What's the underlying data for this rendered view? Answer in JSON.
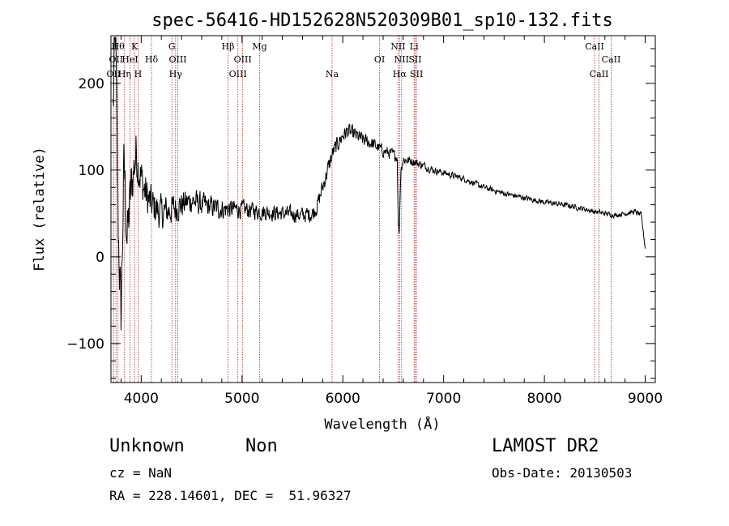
{
  "chart_data": {
    "type": "line",
    "title": "spec-56416-HD152628N520309B01_sp10-132.fits",
    "xlabel": "Wavelength (Å)",
    "ylabel": "Flux (relative)",
    "xlim": [
      3700,
      9100
    ],
    "ylim": [
      -145,
      255
    ],
    "x_ticks": [
      4000,
      5000,
      6000,
      7000,
      8000,
      9000
    ],
    "x_tick_labels": [
      "4000",
      "5000",
      "6000",
      "7000",
      "8000",
      "9000"
    ],
    "y_ticks": [
      -100,
      0,
      100,
      200
    ],
    "y_tick_labels": [
      "−100",
      "0",
      "100",
      "200"
    ],
    "line_color": "#000000",
    "marker_line_color": "#b22222",
    "spectrum_anchors": {
      "x": [
        3720,
        3745,
        3770,
        3800,
        3830,
        3860,
        3900,
        3950,
        4000,
        4050,
        4100,
        4200,
        4300,
        4400,
        4500,
        4600,
        4800,
        5000,
        5200,
        5400,
        5600,
        5700,
        5750,
        5800,
        5850,
        5900,
        5950,
        6000,
        6050,
        6100,
        6200,
        6300,
        6400,
        6500,
        6540,
        6550,
        6560,
        6575,
        6600,
        6700,
        6800,
        6900,
        7000,
        7200,
        7400,
        7600,
        7800,
        8000,
        8200,
        8400,
        8500,
        8600,
        8700,
        8800,
        8900,
        8960,
        9000
      ],
      "y": [
        170,
        260,
        40,
        -70,
        110,
        20,
        80,
        120,
        90,
        70,
        60,
        50,
        55,
        60,
        65,
        60,
        55,
        55,
        52,
        50,
        48,
        50,
        60,
        80,
        100,
        120,
        130,
        140,
        145,
        142,
        135,
        130,
        122,
        118,
        115,
        40,
        30,
        100,
        112,
        110,
        105,
        100,
        97,
        90,
        80,
        73,
        68,
        63,
        60,
        55,
        52,
        50,
        48,
        50,
        52,
        48,
        10
      ]
    },
    "spectrum_noise": {
      "x": [
        3700,
        3900,
        4100,
        4500,
        5000,
        5500,
        5800,
        6200,
        7000,
        8000,
        9000
      ],
      "amplitude": [
        60,
        45,
        30,
        20,
        14,
        12,
        14,
        11,
        5,
        4,
        4
      ]
    },
    "line_markers": [
      {
        "x": 3727,
        "labels": [
          "OII"
        ],
        "rows": [
          3
        ]
      },
      {
        "x": 3750,
        "labels": [
          "OII"
        ],
        "rows": [
          2
        ]
      },
      {
        "x": 3770,
        "labels": [
          "Hθ"
        ],
        "rows": [
          1
        ]
      },
      {
        "x": 3835,
        "labels": [
          "Hη"
        ],
        "rows": [
          3
        ]
      },
      {
        "x": 3889,
        "labels": [
          "HeI"
        ],
        "rows": [
          2
        ]
      },
      {
        "x": 3934,
        "labels": [
          "K"
        ],
        "rows": [
          1
        ]
      },
      {
        "x": 3969,
        "labels": [
          "H"
        ],
        "rows": [
          3
        ]
      },
      {
        "x": 4102,
        "labels": [
          "Hδ"
        ],
        "rows": [
          2
        ]
      },
      {
        "x": 4305,
        "labels": [
          "G"
        ],
        "rows": [
          1
        ]
      },
      {
        "x": 4341,
        "labels": [
          "Hγ"
        ],
        "rows": [
          3
        ]
      },
      {
        "x": 4363,
        "labels": [
          "OIII"
        ],
        "rows": [
          2
        ]
      },
      {
        "x": 4861,
        "labels": [
          "Hβ"
        ],
        "rows": [
          1
        ]
      },
      {
        "x": 4959,
        "labels": [
          "OIII"
        ],
        "rows": [
          3
        ]
      },
      {
        "x": 5007,
        "labels": [
          "OIII"
        ],
        "rows": [
          2
        ]
      },
      {
        "x": 5175,
        "labels": [
          "Mg"
        ],
        "rows": [
          1
        ]
      },
      {
        "x": 5893,
        "labels": [
          "Na"
        ],
        "rows": [
          3
        ]
      },
      {
        "x": 6364,
        "labels": [
          "OI"
        ],
        "rows": [
          2
        ]
      },
      {
        "x": 6548,
        "labels": [
          "NII"
        ],
        "rows": [
          1
        ]
      },
      {
        "x": 6563,
        "labels": [
          "Hα"
        ],
        "rows": [
          3
        ]
      },
      {
        "x": 6583,
        "labels": [
          "NII"
        ],
        "rows": [
          2
        ]
      },
      {
        "x": 6707,
        "labels": [
          "Li"
        ],
        "rows": [
          1
        ]
      },
      {
        "x": 6717,
        "labels": [
          "SII"
        ],
        "rows": [
          2
        ]
      },
      {
        "x": 6731,
        "labels": [
          "SII"
        ],
        "rows": [
          3
        ]
      },
      {
        "x": 8498,
        "labels": [
          "CaII"
        ],
        "rows": [
          1
        ]
      },
      {
        "x": 8542,
        "labels": [
          "CaII"
        ],
        "rows": [
          3
        ]
      },
      {
        "x": 8662,
        "labels": [
          "CaII"
        ],
        "rows": [
          2
        ]
      }
    ]
  },
  "info": {
    "class": "Unknown",
    "subclass": "Non",
    "cz": "cz = NaN",
    "coords": "RA = 228.14601, DEC =  51.96327",
    "survey": "LAMOST DR2",
    "obs_date": "Obs-Date: 20130503"
  }
}
